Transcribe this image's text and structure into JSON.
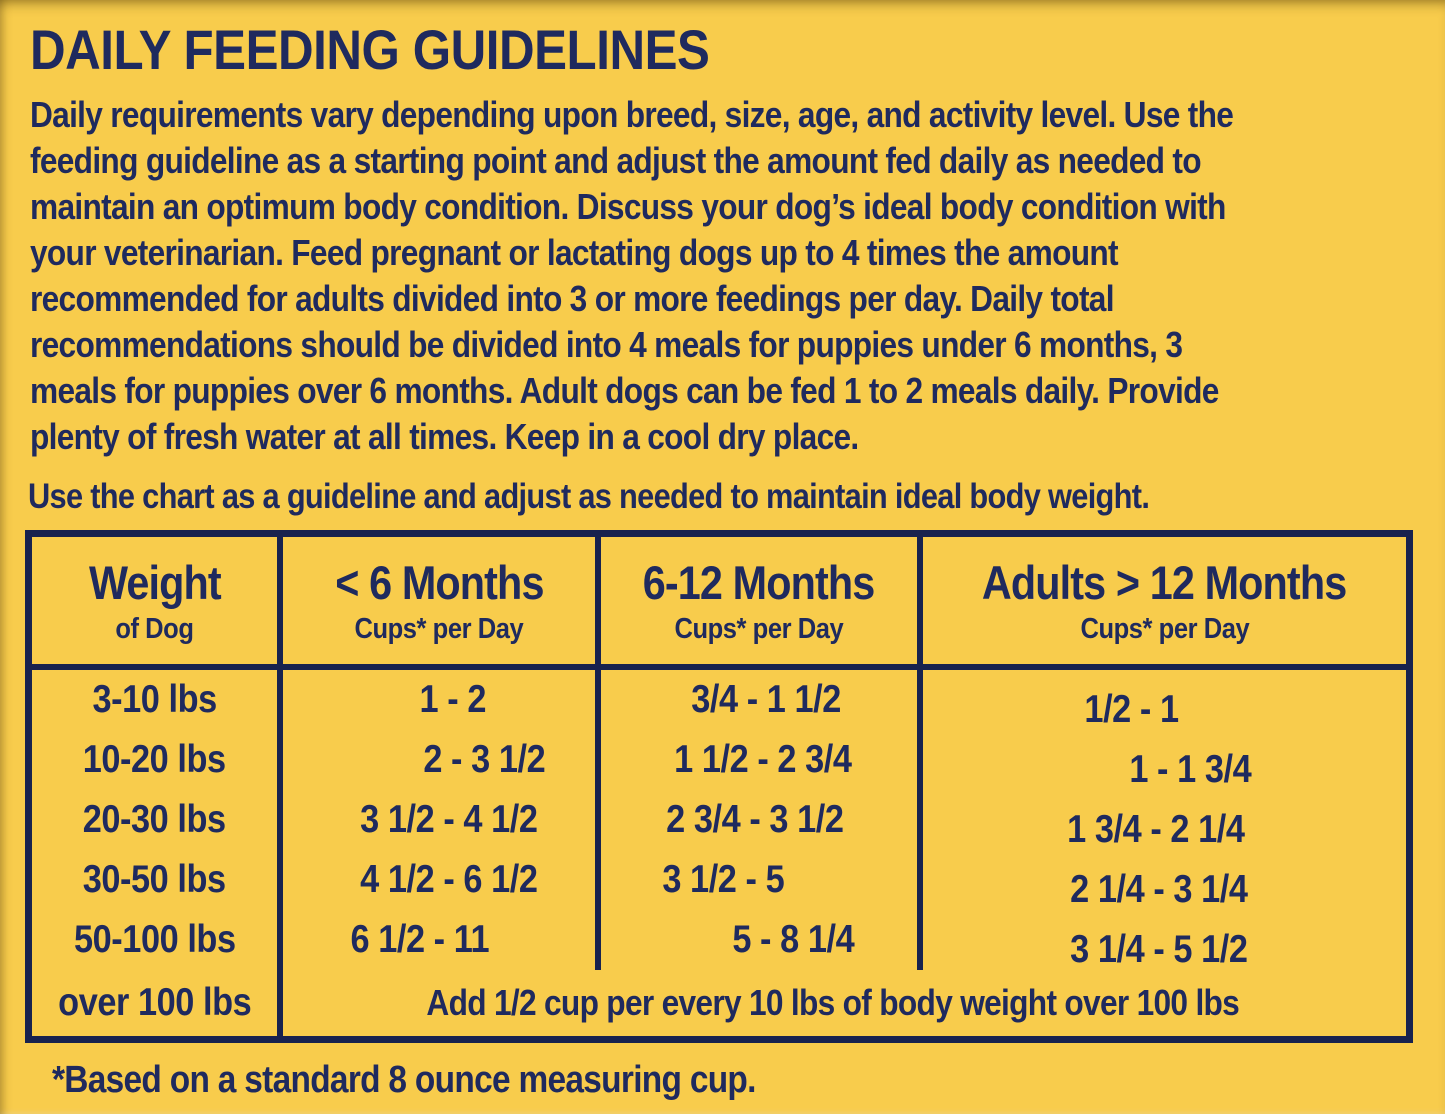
{
  "colors": {
    "background": "#F8CC4C",
    "text": "#1F2A5E",
    "table_border": "#18224E"
  },
  "header": {
    "title": "DAILY FEEDING GUIDELINES"
  },
  "intro": {
    "lines": [
      "Daily requirements vary depending upon breed, size, age, and activity level. Use the",
      "feeding guideline as a starting point and adjust the amount fed daily as needed to",
      "maintain an optimum body condition. Discuss your dog’s ideal body condition with",
      "your veterinarian. Feed pregnant or lactating dogs up to 4 times the amount",
      "recommended for adults divided into 3 or more feedings per day. Daily total",
      "recommendations should be divided into 4 meals for puppies under 6 months, 3",
      "meals for puppies over 6 months. Adult dogs can be fed 1 to 2 meals daily. Provide",
      "plenty of fresh water at all times. Keep in a cool dry place."
    ]
  },
  "chart_note": "Use the chart as a guideline and adjust as needed to maintain ideal body weight.",
  "table": {
    "columns": [
      {
        "title": "Weight",
        "subtitle": "of Dog"
      },
      {
        "title": "< 6 Months",
        "subtitle": "Cups* per Day"
      },
      {
        "title": "6-12 Months",
        "subtitle": "Cups* per Day"
      },
      {
        "title": "Adults > 12 Months",
        "subtitle": "Cups* per Day"
      }
    ],
    "rows": [
      {
        "weight": "3-10 lbs",
        "under_6_months": "1 - 2",
        "months_6_12": "3/4 - 1 1/2",
        "adults_over_12": "1/2 - 1"
      },
      {
        "weight": "10-20 lbs",
        "under_6_months": "2 - 3 1/2",
        "months_6_12": "1 1/2 - 2 3/4",
        "adults_over_12": "1 - 1 3/4"
      },
      {
        "weight": "20-30 lbs",
        "under_6_months": "3 1/2 - 4 1/2",
        "months_6_12": "2 3/4 - 3 1/2",
        "adults_over_12": "1 3/4 - 2 1/4"
      },
      {
        "weight": "30-50 lbs",
        "under_6_months": "4 1/2 - 6 1/2",
        "months_6_12": "3 1/2 - 5",
        "adults_over_12": "2 1/4 - 3 1/4"
      },
      {
        "weight": "50-100 lbs",
        "under_6_months": "6 1/2 - 11",
        "months_6_12": "5 - 8 1/4",
        "adults_over_12": "3 1/4 - 5 1/2"
      }
    ],
    "overflow_row": {
      "weight": "over 100 lbs",
      "note": "Add 1/2 cup per every 10 lbs of body weight over 100 lbs"
    }
  },
  "footnote": "*Based on a standard 8 ounce measuring cup."
}
